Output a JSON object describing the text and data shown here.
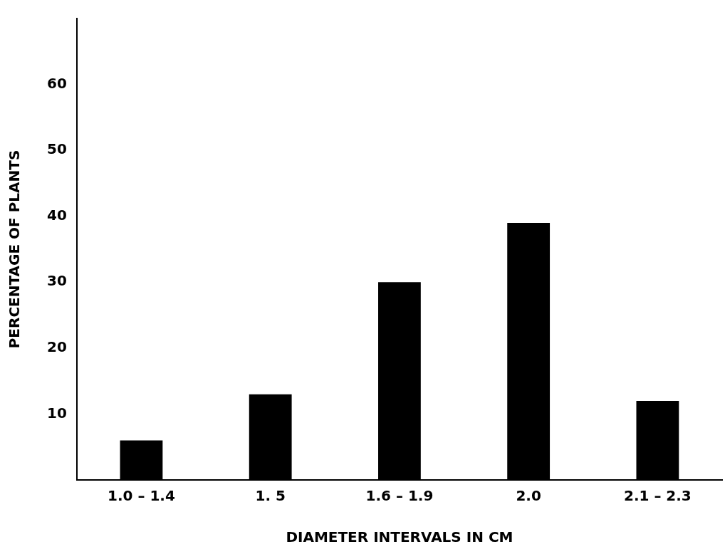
{
  "chart_data": {
    "type": "bar",
    "xlabel": "DIAMETER INTERVALS IN CM",
    "ylabel": "PERCENTAGE OF PLANTS",
    "categories": [
      "1.0 – 1.4",
      "1. 5",
      "1.6 – 1.9",
      "2.0",
      "2.1 – 2.3"
    ],
    "values": [
      6,
      13,
      30,
      39,
      12
    ],
    "color": "#000000",
    "ylim": [
      0,
      70
    ],
    "yticks": [
      10,
      20,
      30,
      40,
      50,
      60
    ],
    "grid": false,
    "legend": false
  }
}
